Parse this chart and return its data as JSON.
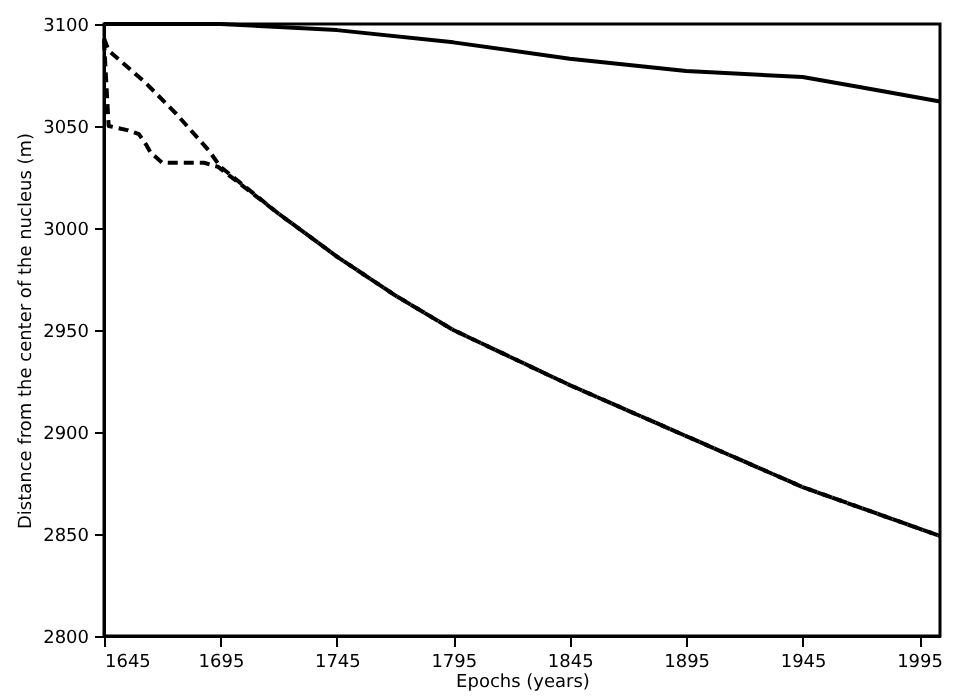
{
  "chart_data": {
    "type": "line",
    "xlabel": "Epochs (years)",
    "ylabel": "Distance from the center of the nucleus (m)",
    "xlim": [
      1645,
      2004
    ],
    "xticks": [
      1645,
      1695,
      1745,
      1795,
      1845,
      1895,
      1945,
      1995
    ],
    "ylim": [
      2800,
      3100
    ],
    "yticks": [
      2800,
      2850,
      2900,
      2950,
      3000,
      3050,
      3100
    ],
    "grid": false,
    "series": [
      {
        "color": "#000000",
        "line_style": "solid",
        "x": [
          1645,
          1695,
          1745,
          1795,
          1845,
          1895,
          1945,
          1970,
          2004
        ],
        "values": [
          3100,
          3100,
          3097,
          3091,
          3083,
          3077,
          3074,
          3069,
          3062
        ]
      },
      {
        "color": "#000000",
        "line_style": "dashed",
        "x": [
          1645,
          1647,
          1663,
          1676,
          1690,
          1695,
          1720,
          1745,
          1770,
          1795,
          1845,
          1895,
          1945,
          2004
        ],
        "values": [
          3093,
          3087,
          3071,
          3056,
          3038,
          3030,
          3007,
          2986,
          2967,
          2950,
          2923,
          2898,
          2873,
          2849
        ]
      },
      {
        "color": "#000000",
        "line_style": "dashed",
        "x": [
          1645,
          1647,
          1655,
          1660,
          1663,
          1665,
          1670,
          1688,
          1694,
          1720,
          1745,
          1770,
          1795,
          1845,
          1895,
          1945,
          2004
        ],
        "values": [
          3092,
          3050,
          3048,
          3046,
          3041,
          3037,
          3032,
          3032,
          3030,
          3007,
          2986,
          2967,
          2950,
          2923,
          2898,
          2873,
          2849
        ]
      }
    ]
  }
}
